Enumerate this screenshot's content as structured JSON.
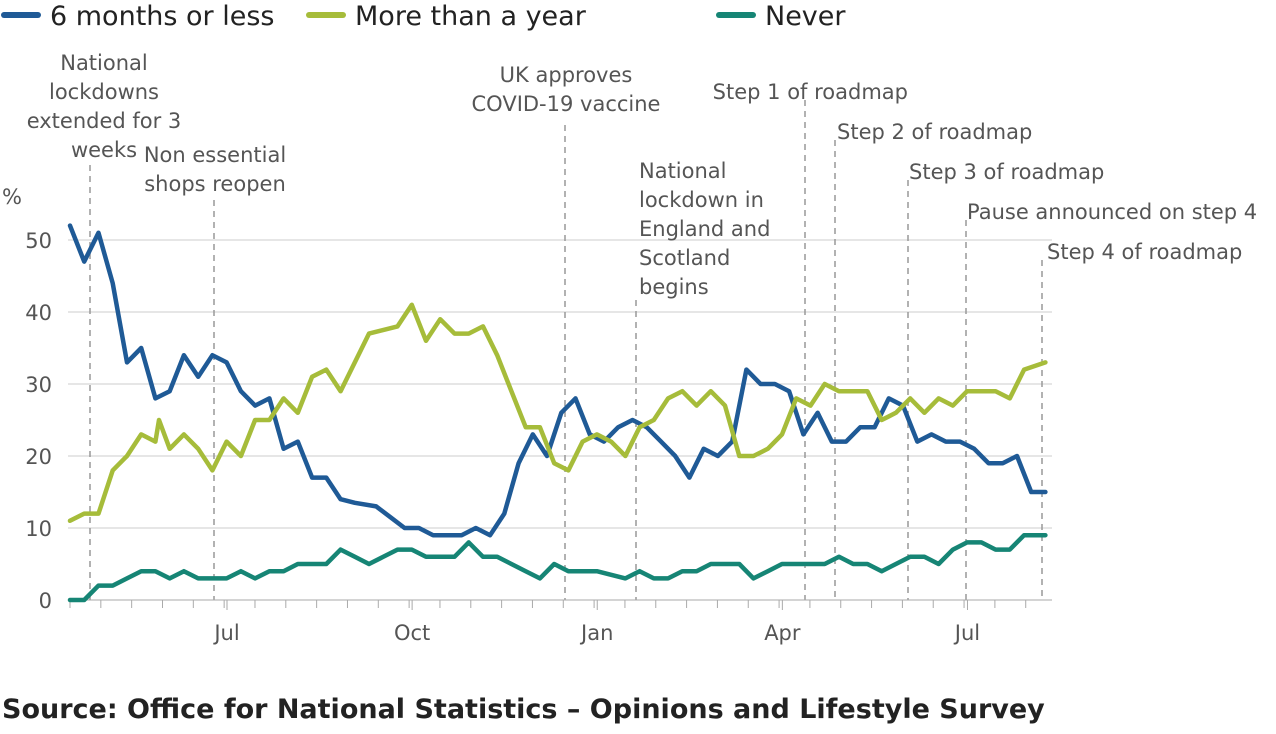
{
  "chart_data": {
    "type": "line",
    "ylabel": "%",
    "ylim": [
      0,
      55
    ],
    "y_ticks": [
      0,
      10,
      20,
      30,
      40,
      50
    ],
    "x_ticks": [
      {
        "label": "Jul",
        "week": 25
      },
      {
        "label": "Oct",
        "week": 51
      },
      {
        "label": "Jan",
        "week": 77
      },
      {
        "label": "Apr",
        "week": 103
      },
      {
        "label": "Jul",
        "week": 129
      }
    ],
    "xlim": [
      0,
      140
    ],
    "series": [
      {
        "name": "6 months or less",
        "color": "#1f5a96",
        "points": [
          [
            0,
            52
          ],
          [
            2,
            47
          ],
          [
            4,
            51
          ],
          [
            6,
            44
          ],
          [
            8,
            33
          ],
          [
            10,
            35
          ],
          [
            12,
            28
          ],
          [
            14,
            29
          ],
          [
            16,
            34
          ],
          [
            18,
            31
          ],
          [
            20,
            34
          ],
          [
            22,
            33
          ],
          [
            24,
            29
          ],
          [
            26,
            27
          ],
          [
            28,
            28
          ],
          [
            30,
            21
          ],
          [
            32,
            22
          ],
          [
            34,
            17
          ],
          [
            36,
            17
          ],
          [
            38,
            14
          ],
          [
            40,
            13.5
          ],
          [
            43,
            13
          ],
          [
            45,
            11.5
          ],
          [
            47,
            10
          ],
          [
            49,
            10
          ],
          [
            51,
            9
          ],
          [
            53,
            9
          ],
          [
            55,
            9
          ],
          [
            57,
            10
          ],
          [
            59,
            9
          ],
          [
            61,
            12
          ],
          [
            63,
            19
          ],
          [
            65,
            23
          ],
          [
            67,
            20
          ],
          [
            69,
            26
          ],
          [
            71,
            28
          ],
          [
            73,
            23
          ],
          [
            75,
            22
          ],
          [
            77,
            24
          ],
          [
            79,
            25
          ],
          [
            81,
            24
          ],
          [
            83,
            22
          ],
          [
            85,
            20
          ],
          [
            87,
            17
          ],
          [
            89,
            21
          ],
          [
            91,
            20
          ],
          [
            93,
            22
          ],
          [
            95,
            32
          ],
          [
            97,
            30
          ],
          [
            99,
            30
          ],
          [
            101,
            29
          ],
          [
            103,
            23
          ],
          [
            105,
            26
          ],
          [
            107,
            22
          ],
          [
            109,
            22
          ],
          [
            111,
            24
          ],
          [
            113,
            24
          ],
          [
            115,
            28
          ],
          [
            117,
            27
          ],
          [
            119,
            22
          ],
          [
            121,
            23
          ],
          [
            123,
            22
          ],
          [
            125,
            22
          ],
          [
            127,
            21
          ],
          [
            129,
            19
          ],
          [
            131,
            19
          ],
          [
            133,
            20
          ],
          [
            135,
            15
          ],
          [
            137,
            15
          ]
        ]
      },
      {
        "name": "More than a year",
        "color": "#a6bc3a",
        "points": [
          [
            0,
            11
          ],
          [
            2,
            12
          ],
          [
            4,
            12
          ],
          [
            6,
            18
          ],
          [
            8,
            20
          ],
          [
            10,
            23
          ],
          [
            12,
            22
          ],
          [
            12.5,
            25
          ],
          [
            14,
            21
          ],
          [
            16,
            23
          ],
          [
            18,
            21
          ],
          [
            20,
            18
          ],
          [
            22,
            22
          ],
          [
            24,
            20
          ],
          [
            26,
            25
          ],
          [
            28,
            25
          ],
          [
            30,
            28
          ],
          [
            32,
            26
          ],
          [
            34,
            31
          ],
          [
            36,
            32
          ],
          [
            38,
            29
          ],
          [
            42,
            37
          ],
          [
            46,
            38
          ],
          [
            48,
            41
          ],
          [
            50,
            36
          ],
          [
            52,
            39
          ],
          [
            54,
            37
          ],
          [
            56,
            37
          ],
          [
            58,
            38
          ],
          [
            60,
            34
          ],
          [
            62,
            29
          ],
          [
            64,
            24
          ],
          [
            66,
            24
          ],
          [
            68,
            19
          ],
          [
            70,
            18
          ],
          [
            72,
            22
          ],
          [
            74,
            23
          ],
          [
            76,
            22
          ],
          [
            78,
            20
          ],
          [
            80,
            24
          ],
          [
            82,
            25
          ],
          [
            84,
            28
          ],
          [
            86,
            29
          ],
          [
            88,
            27
          ],
          [
            90,
            29
          ],
          [
            92,
            27
          ],
          [
            94,
            20
          ],
          [
            96,
            20
          ],
          [
            98,
            21
          ],
          [
            100,
            23
          ],
          [
            102,
            28
          ],
          [
            104,
            27
          ],
          [
            106,
            30
          ],
          [
            108,
            29
          ],
          [
            110,
            29
          ],
          [
            112,
            29
          ],
          [
            114,
            25
          ],
          [
            116,
            26
          ],
          [
            118,
            28
          ],
          [
            120,
            26
          ],
          [
            122,
            28
          ],
          [
            124,
            27
          ],
          [
            126,
            29
          ],
          [
            128,
            29
          ],
          [
            130,
            29
          ],
          [
            132,
            28
          ],
          [
            134,
            32
          ],
          [
            137,
            33
          ]
        ]
      },
      {
        "name": "Never",
        "color": "#168575",
        "points": [
          [
            0,
            0
          ],
          [
            2,
            0
          ],
          [
            4,
            2
          ],
          [
            6,
            2
          ],
          [
            8,
            3
          ],
          [
            10,
            4
          ],
          [
            12,
            4
          ],
          [
            14,
            3
          ],
          [
            16,
            4
          ],
          [
            18,
            3
          ],
          [
            20,
            3
          ],
          [
            22,
            3
          ],
          [
            24,
            4
          ],
          [
            26,
            3
          ],
          [
            28,
            4
          ],
          [
            30,
            4
          ],
          [
            32,
            5
          ],
          [
            34,
            5
          ],
          [
            36,
            5
          ],
          [
            38,
            7
          ],
          [
            40,
            6
          ],
          [
            42,
            5
          ],
          [
            44,
            6
          ],
          [
            46,
            7
          ],
          [
            48,
            7
          ],
          [
            50,
            6
          ],
          [
            52,
            6
          ],
          [
            54,
            6
          ],
          [
            56,
            8
          ],
          [
            58,
            6
          ],
          [
            60,
            6
          ],
          [
            62,
            5
          ],
          [
            64,
            4
          ],
          [
            66,
            3
          ],
          [
            68,
            5
          ],
          [
            70,
            4
          ],
          [
            72,
            4
          ],
          [
            74,
            4
          ],
          [
            76,
            3.5
          ],
          [
            78,
            3
          ],
          [
            80,
            4
          ],
          [
            82,
            3
          ],
          [
            84,
            3
          ],
          [
            86,
            4
          ],
          [
            88,
            4
          ],
          [
            90,
            5
          ],
          [
            92,
            5
          ],
          [
            94,
            5
          ],
          [
            96,
            3
          ],
          [
            98,
            4
          ],
          [
            100,
            5
          ],
          [
            102,
            5
          ],
          [
            104,
            5
          ],
          [
            106,
            5
          ],
          [
            108,
            6
          ],
          [
            110,
            5
          ],
          [
            112,
            5
          ],
          [
            114,
            4
          ],
          [
            116,
            5
          ],
          [
            118,
            6
          ],
          [
            120,
            6
          ],
          [
            122,
            5
          ],
          [
            124,
            7
          ],
          [
            126,
            8
          ],
          [
            128,
            8
          ],
          [
            130,
            7
          ],
          [
            132,
            7
          ],
          [
            134,
            9
          ],
          [
            137,
            9
          ]
        ]
      }
    ],
    "annotations": [
      {
        "week": 3,
        "lines": [
          "National",
          "lockdowns",
          "extended for 3",
          "weeks"
        ],
        "align": "middle"
      },
      {
        "week": 20,
        "lines": [
          "Non essential",
          "shops reopen"
        ],
        "align": "middle"
      },
      {
        "week": 69,
        "lines": [
          "UK approves",
          "COVID-19 vaccine"
        ],
        "align": "middle"
      },
      {
        "week": 79,
        "lines": [
          "National",
          "lockdown in",
          "England and",
          "Scotland",
          "begins"
        ],
        "align": "start"
      },
      {
        "week": 102,
        "lines": [
          "Step 1 of roadmap"
        ],
        "align": "end"
      },
      {
        "week": 107,
        "lines": [
          "Step 2 of roadmap"
        ],
        "align": "start"
      },
      {
        "week": 117,
        "lines": [
          "Step 3 of roadmap"
        ],
        "align": "start"
      },
      {
        "week": 125,
        "lines": [
          "Pause announced on step 4"
        ],
        "align": "start"
      },
      {
        "week": 136,
        "lines": [
          "Step 4 of roadmap"
        ],
        "align": "start"
      }
    ]
  },
  "source_text": "Source: Office for National Statistics – Opinions and Lifestyle Survey"
}
